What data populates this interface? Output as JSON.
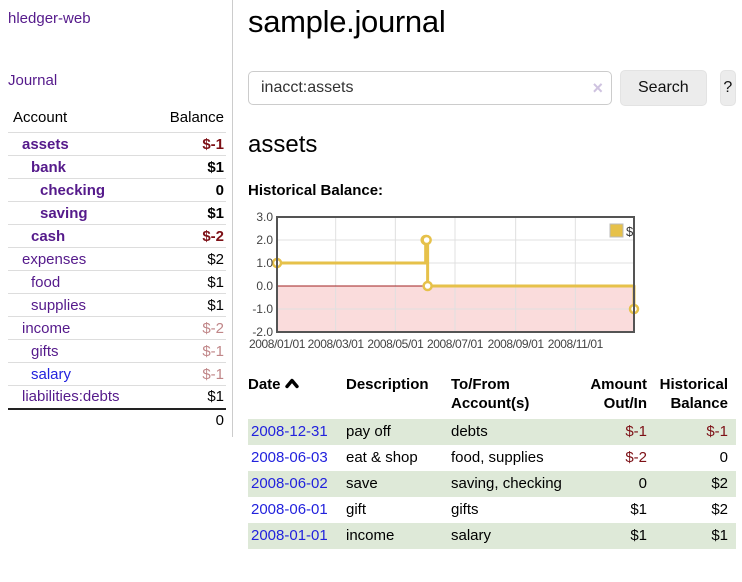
{
  "app": {
    "brand": "hledger-web",
    "nav_journal": "Journal"
  },
  "sidebar": {
    "accounts_header": {
      "account": "Account",
      "balance": "Balance"
    },
    "accounts": [
      {
        "name": "assets",
        "depth": 1,
        "balance": "$-1",
        "bold": true,
        "balance_color": "neg"
      },
      {
        "name": "bank",
        "depth": 2,
        "balance": "$1",
        "bold": true,
        "balance_color": "pos"
      },
      {
        "name": "checking",
        "depth": 3,
        "balance": "0",
        "bold": true,
        "balance_color": "pos"
      },
      {
        "name": "saving",
        "depth": 3,
        "balance": "$1",
        "bold": true,
        "balance_color": "pos"
      },
      {
        "name": "cash",
        "depth": 2,
        "balance": "$-2",
        "bold": true,
        "balance_color": "neg"
      },
      {
        "name": "expenses",
        "depth": 1,
        "balance": "$2",
        "bold": false,
        "balance_color": "pos"
      },
      {
        "name": "food",
        "depth": 2,
        "balance": "$1",
        "bold": false,
        "balance_color": "pos"
      },
      {
        "name": "supplies",
        "depth": 2,
        "balance": "$1",
        "bold": false,
        "balance_color": "pos"
      },
      {
        "name": "income",
        "depth": 1,
        "balance": "$-2",
        "bold": false,
        "balance_color": "neg-light"
      },
      {
        "name": "gifts",
        "depth": 2,
        "balance": "$-1",
        "bold": false,
        "balance_color": "neg-light"
      },
      {
        "name": "salary",
        "depth": 2,
        "balance": "$-1",
        "bold": false,
        "balance_color": "neg-light",
        "link_color": "blue"
      },
      {
        "name": "liabilities:debts",
        "depth": 1,
        "balance": "$1",
        "bold": false,
        "balance_color": "pos"
      }
    ],
    "total": "0"
  },
  "header": {
    "title": "sample.journal"
  },
  "search": {
    "value": "inacct:assets",
    "clear_icon": "×",
    "button": "Search",
    "help_button": "?"
  },
  "account_page": {
    "title": "assets",
    "chart_label": "Historical Balance:"
  },
  "chart_data": {
    "type": "line",
    "style": "step",
    "title": "Historical Balance",
    "legend": "$",
    "legend_position": "top-right",
    "grid": true,
    "ylim": [
      -2,
      3
    ],
    "yticks": [
      3.0,
      2.0,
      1.0,
      0.0,
      -1.0,
      -2.0
    ],
    "ytick_labels": [
      "3.0",
      "2.0",
      "1.0",
      "0.0",
      "-1.0",
      "-2.0"
    ],
    "x_range_days": [
      0,
      365
    ],
    "xticks": [
      {
        "label": "2008/01/01",
        "day": 0
      },
      {
        "label": "2008/03/01",
        "day": 60
      },
      {
        "label": "2008/05/01",
        "day": 121
      },
      {
        "label": "2008/07/01",
        "day": 182
      },
      {
        "label": "2008/09/01",
        "day": 244
      },
      {
        "label": "2008/11/01",
        "day": 305
      }
    ],
    "series": [
      {
        "name": "$",
        "color": "#E6C14A",
        "points": [
          {
            "date": "2008-01-01",
            "day": 0,
            "value": 1
          },
          {
            "date": "2008-06-01",
            "day": 152,
            "value": 2
          },
          {
            "date": "2008-06-02",
            "day": 153,
            "value": 2
          },
          {
            "date": "2008-06-03",
            "day": 154,
            "value": 0
          },
          {
            "date": "2008-12-31",
            "day": 365,
            "value": -1
          }
        ]
      }
    ],
    "colors": {
      "negative_region": "#fadcdc",
      "zero_line": "#a02222",
      "grid": "#e0e0e0",
      "border": "#545454",
      "marker_fill": "#ffffff"
    }
  },
  "register": {
    "columns": {
      "date": "Date",
      "description": "Description",
      "accounts": "To/From Account(s)",
      "amount": "Amount Out/In",
      "balance": "Historical Balance"
    },
    "rows": [
      {
        "date": "2008-12-31",
        "description": "pay off",
        "accounts": "debts",
        "amount": "$-1",
        "amount_color": "neg",
        "balance": "$-1",
        "balance_color": "neg",
        "shaded": true
      },
      {
        "date": "2008-06-03",
        "description": "eat & shop",
        "accounts": "food, supplies",
        "amount": "$-2",
        "amount_color": "neg",
        "balance": "0",
        "balance_color": "pos",
        "shaded": false
      },
      {
        "date": "2008-06-02",
        "description": "save",
        "accounts": "saving, checking",
        "amount": "0",
        "amount_color": "pos",
        "balance": "$2",
        "balance_color": "pos",
        "shaded": true
      },
      {
        "date": "2008-06-01",
        "description": "gift",
        "accounts": "gifts",
        "amount": "$1",
        "amount_color": "pos",
        "balance": "$2",
        "balance_color": "pos",
        "shaded": false
      },
      {
        "date": "2008-01-01",
        "description": "income",
        "accounts": "salary",
        "amount": "$1",
        "amount_color": "pos",
        "balance": "$1",
        "balance_color": "pos",
        "shaded": true
      }
    ]
  }
}
